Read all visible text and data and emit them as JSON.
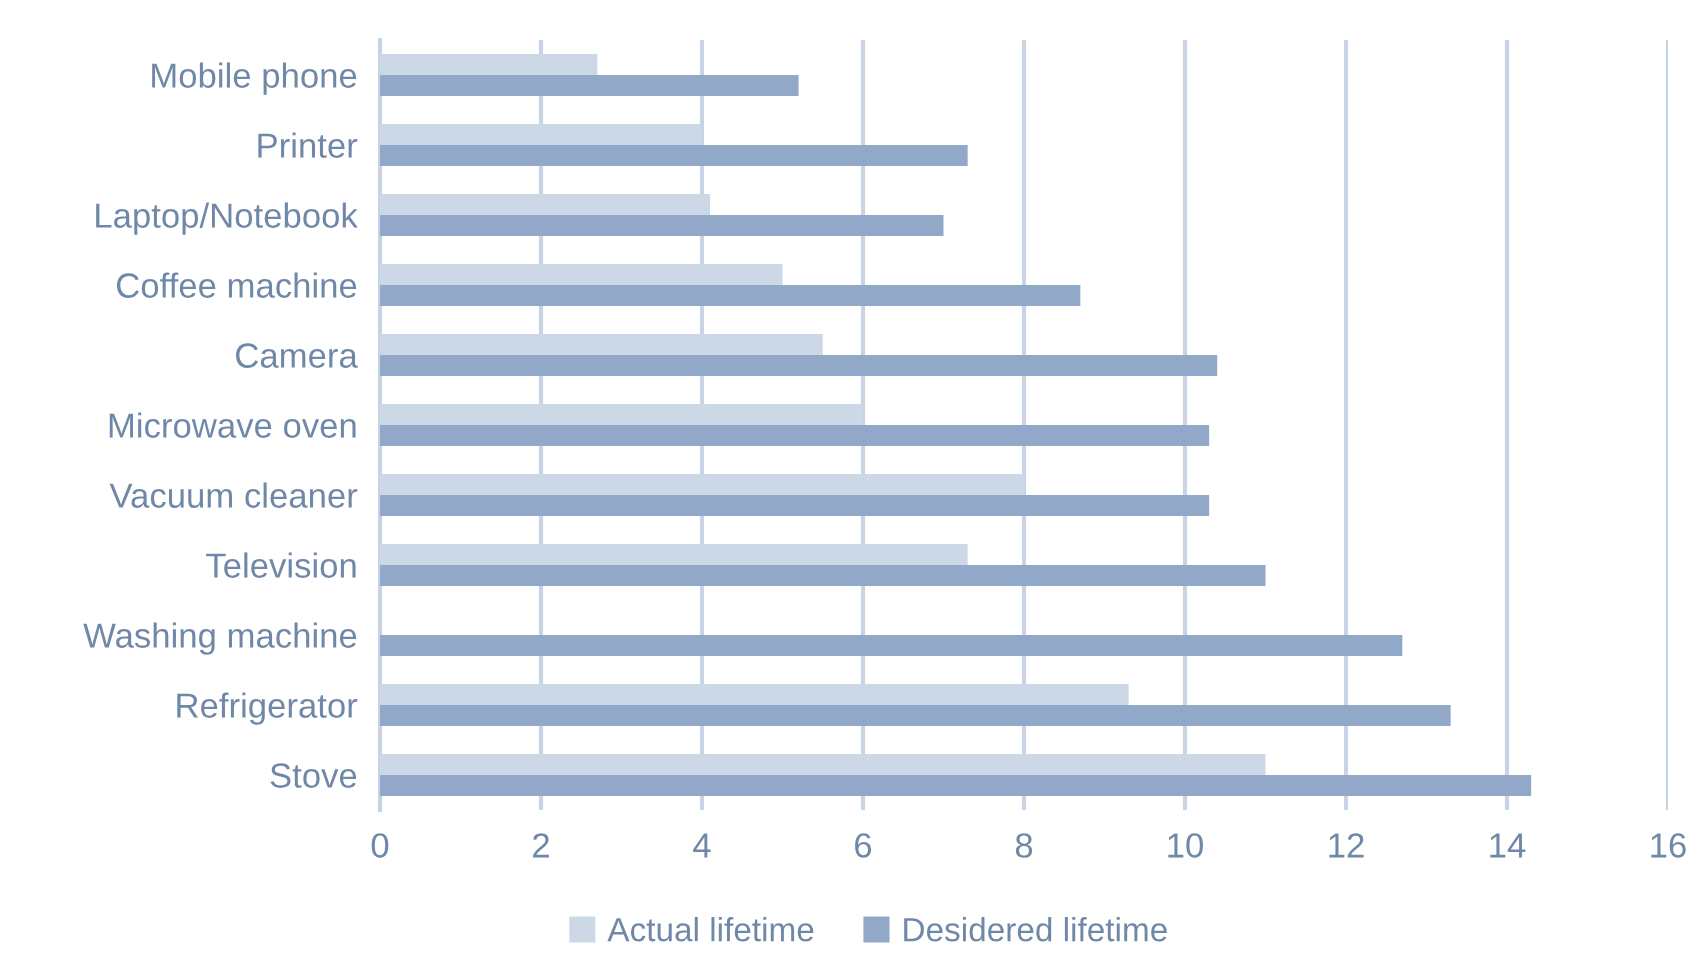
{
  "chart_data": {
    "type": "bar",
    "orientation": "horizontal",
    "categories": [
      "Mobile phone",
      "Printer",
      "Laptop/Notebook",
      "Coffee machine",
      "Camera",
      "Microwave oven",
      "Vacuum cleaner",
      "Television",
      "Washing machine",
      "Refrigerator",
      "Stove"
    ],
    "series": [
      {
        "name": "Actual lifetime",
        "color": "#ccd8e6",
        "values": [
          2.7,
          4.0,
          4.1,
          5.0,
          5.5,
          6.0,
          8.0,
          7.3,
          null,
          9.3,
          11.0
        ]
      },
      {
        "name": "Desidered lifetime",
        "color": "#91a8c8",
        "values": [
          5.2,
          7.3,
          7.0,
          8.7,
          10.4,
          10.3,
          10.3,
          11.0,
          12.7,
          13.3,
          14.3
        ]
      }
    ],
    "xlim": [
      0,
      16
    ],
    "xticks": [
      0,
      2,
      4,
      6,
      8,
      10,
      12,
      14,
      16
    ],
    "grid": "x",
    "legend": "bottom"
  }
}
